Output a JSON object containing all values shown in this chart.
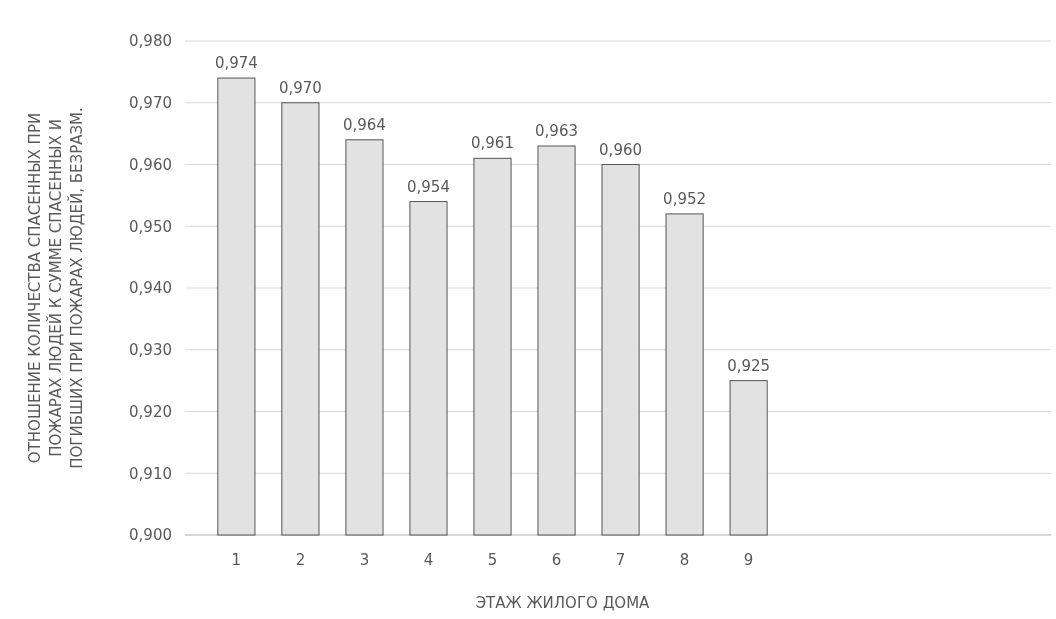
{
  "chart_data": {
    "type": "bar",
    "xlabel": "ЭТАЖ ЖИЛОГО ДОМА",
    "ylabel": "ОТНОШЕНИЕ КОЛИЧЕСТВА СПАСЕННЫХ ПРИ\nПОЖАРАХ ЛЮДЕЙ К СУММЕ СПАСЕННЫХ И\nПОГИБШИХ ПРИ ПОЖАРАХ ЛЮДЕЙ, БЕЗРАЗМ.",
    "categories": [
      "1",
      "2",
      "3",
      "4",
      "5",
      "6",
      "7",
      "8",
      "9"
    ],
    "values": [
      0.974,
      0.97,
      0.964,
      0.954,
      0.961,
      0.963,
      0.96,
      0.952,
      0.925
    ],
    "color": "#e2e2e2",
    "ylim": [
      0.9,
      0.98
    ],
    "yticks": [
      {
        "value": 0.9,
        "label": "0,900"
      },
      {
        "value": 0.91,
        "label": "0,910"
      },
      {
        "value": 0.92,
        "label": "0,920"
      },
      {
        "value": 0.93,
        "label": "0,930"
      },
      {
        "value": 0.94,
        "label": "0,940"
      },
      {
        "value": 0.95,
        "label": "0,950"
      },
      {
        "value": 0.96,
        "label": "0,960"
      },
      {
        "value": 0.97,
        "label": "0,970"
      },
      {
        "value": 0.98,
        "label": "0,980"
      }
    ],
    "value_labels": [
      "0,974",
      "0,970",
      "0,964",
      "0,954",
      "0,961",
      "0,963",
      "0,960",
      "0,952",
      "0,925"
    ],
    "grid": "y"
  }
}
